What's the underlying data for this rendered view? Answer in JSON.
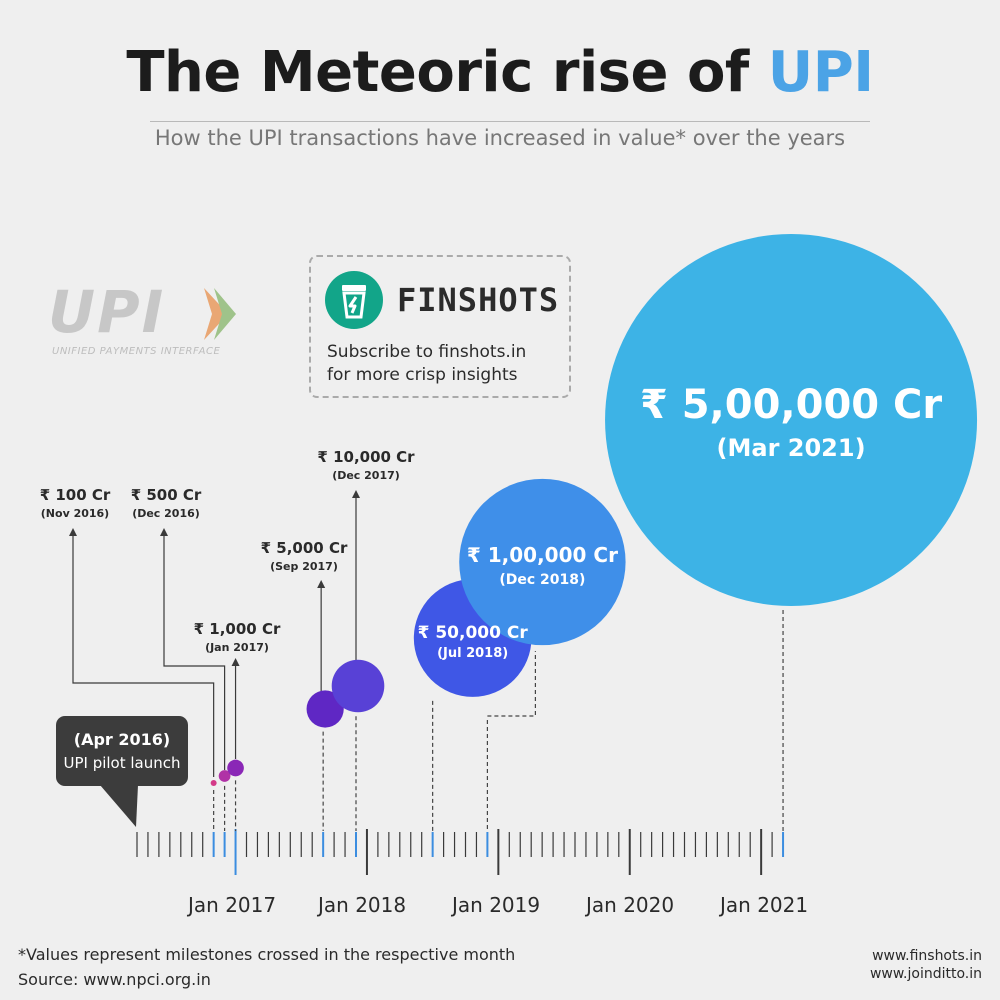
{
  "header": {
    "title_main": "The Meteoric rise of",
    "title_accent": "UPI",
    "subtitle": "How the UPI transactions have increased in value* over the years"
  },
  "upi_logo": {
    "word": "UPI",
    "tagline": "UNIFIED PAYMENTS INTERFACE"
  },
  "promo": {
    "brand": "FINSHOTS",
    "line1": "Subscribe to finshots.in",
    "line2": "for more crisp insights"
  },
  "launch": {
    "date": "(Apr 2016)",
    "event": "UPI pilot launch"
  },
  "chart_data": {
    "type": "scatter",
    "title": "The Meteoric rise of UPI",
    "subtitle": "How the UPI transactions have increased in value* over the years",
    "x_axis_type": "month timeline",
    "x_range": [
      "Apr 2016",
      "Mar 2021"
    ],
    "x_ticks": [
      "Jan 2017",
      "Jan 2018",
      "Jan 2019",
      "Jan 2020",
      "Jan 2021"
    ],
    "start_event": {
      "date": "Apr 2016",
      "label": "UPI pilot launch"
    },
    "value_unit": "₹ Cr",
    "milestones": [
      {
        "date": "Nov 2016",
        "value": 100,
        "label": "₹ 100 Cr",
        "date_label": "(Nov 2016)",
        "color": "#d43a88"
      },
      {
        "date": "Dec 2016",
        "value": 500,
        "label": "₹ 500 Cr",
        "date_label": "(Dec 2016)",
        "color": "#b032a6"
      },
      {
        "date": "Jan 2017",
        "value": 1000,
        "label": "₹ 1,000 Cr",
        "date_label": "(Jan 2017)",
        "color": "#8a27b6"
      },
      {
        "date": "Sep 2017",
        "value": 5000,
        "label": "₹ 5,000 Cr",
        "date_label": "(Sep 2017)",
        "color": "#5f27c4"
      },
      {
        "date": "Dec 2017",
        "value": 10000,
        "label": "₹ 10,000 Cr",
        "date_label": "(Dec 2017)",
        "color": "#5841d6"
      },
      {
        "date": "Jul 2018",
        "value": 50000,
        "label": "₹ 50,000 Cr",
        "date_label": "(Jul 2018)",
        "color": "#3f57e6"
      },
      {
        "date": "Dec 2018",
        "value": 100000,
        "label": "₹ 1,00,000 Cr",
        "date_label": "(Dec 2018)",
        "color": "#3f8fe9"
      },
      {
        "date": "Mar 2021",
        "value": 500000,
        "label": "₹ 5,00,000 Cr",
        "date_label": "(Mar 2021)",
        "color": "#3db3e6"
      }
    ]
  },
  "footer": {
    "note": "*Values represent milestones crossed in the respective month",
    "source": "Source: www.npci.org.in",
    "site1": "www.finshots.in",
    "site2": "www.joinditto.in"
  }
}
